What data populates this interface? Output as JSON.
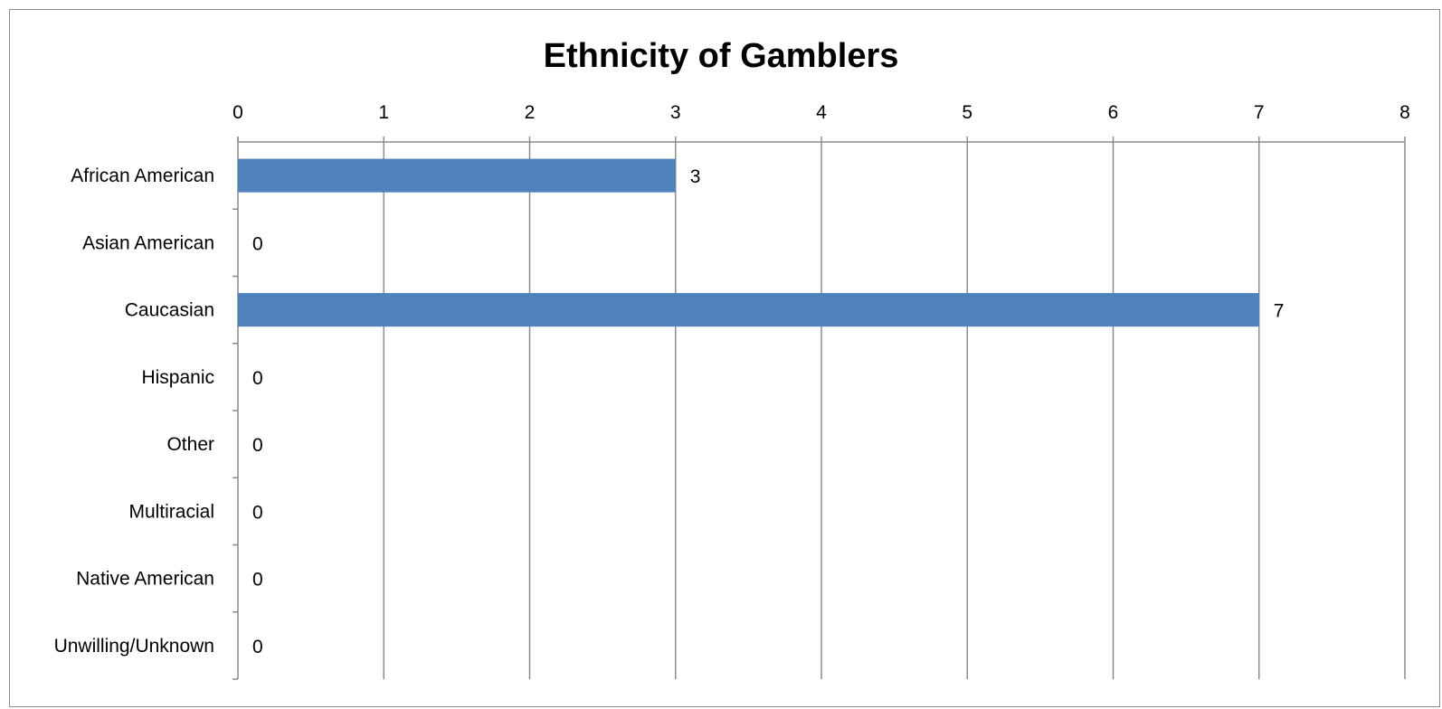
{
  "chart_data": {
    "type": "bar",
    "orientation": "horizontal",
    "title": "Ethnicity of Gamblers",
    "xlabel": "",
    "ylabel": "",
    "categories": [
      "African American",
      "Asian American",
      "Caucasian",
      "Hispanic",
      "Other",
      "Multiracial",
      "Native American",
      "Unwilling/Unknown"
    ],
    "values": [
      3,
      0,
      7,
      0,
      0,
      0,
      0,
      0
    ],
    "xlim": [
      0,
      8
    ],
    "xticks": [
      0,
      1,
      2,
      3,
      4,
      5,
      6,
      7,
      8
    ],
    "value_axis_position": "top",
    "grid": true,
    "legend": "none",
    "data_labels": true,
    "colors": {
      "bar": "#4F81BD",
      "gridline": "#8C8C8C",
      "axis": "#8C8C8C"
    }
  }
}
